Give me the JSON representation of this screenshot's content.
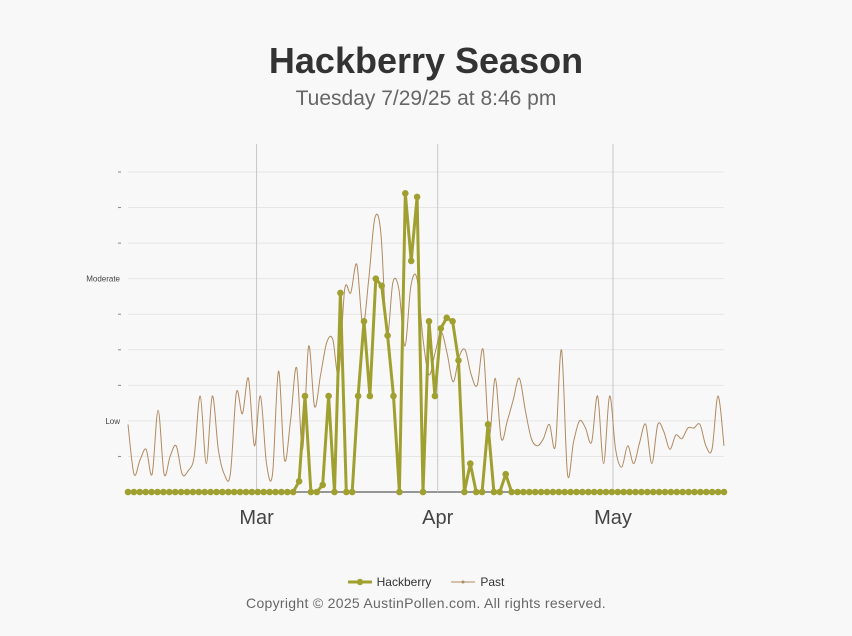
{
  "chart_data": {
    "type": "line",
    "title": "Hackberry Season",
    "subtitle": "Tuesday 7/29/25 at 8:46 pm",
    "x_start_date": "2025-02-07",
    "x_end_date": "2025-05-20",
    "x_tick_labels": [
      {
        "label": "Mar",
        "date": "2025-03-01"
      },
      {
        "label": "Apr",
        "date": "2025-04-01"
      },
      {
        "label": "May",
        "date": "2025-05-01"
      }
    ],
    "y_levels": [
      {
        "label": "Low",
        "value": 2
      },
      {
        "label": "Moderate",
        "value": 6
      }
    ],
    "y_minor_ticks": [
      1,
      3,
      4,
      5,
      7,
      8,
      9
    ],
    "ylim": [
      0,
      9
    ],
    "series": [
      {
        "name": "Hackberry",
        "color": "#a0a030",
        "values": [
          0,
          0,
          0,
          0,
          0,
          0,
          0,
          0,
          0,
          0,
          0,
          0,
          0,
          0,
          0,
          0,
          0,
          0,
          0,
          0,
          0,
          0,
          0,
          0,
          0,
          0,
          0,
          0,
          0,
          0.3,
          2.7,
          0,
          0,
          0.2,
          2.7,
          0,
          5.6,
          0,
          0,
          2.7,
          4.8,
          2.7,
          6,
          5.8,
          4.4,
          2.7,
          0,
          8.4,
          6.5,
          8.3,
          0,
          4.8,
          2.7,
          4.6,
          4.9,
          4.8,
          3.7,
          0,
          0.8,
          0,
          0,
          1.9,
          0,
          0,
          0.5,
          0,
          0,
          0,
          0,
          0,
          0,
          0,
          0,
          0,
          0,
          0,
          0,
          0,
          0,
          0,
          0,
          0,
          0,
          0,
          0,
          0,
          0,
          0,
          0,
          0,
          0,
          0,
          0,
          0,
          0,
          0,
          0,
          0,
          0,
          0,
          0,
          0
        ]
      },
      {
        "name": "Past",
        "color": "#b08a60",
        "values": [
          1.9,
          0.5,
          0.9,
          1.2,
          0.5,
          2.3,
          0.5,
          1.0,
          1.3,
          0.5,
          0.6,
          1.0,
          2.7,
          0.8,
          2.7,
          1.2,
          0.5,
          0.5,
          2.8,
          2.2,
          3.2,
          1.3,
          2.7,
          0.8,
          0.5,
          3.4,
          0.9,
          2.0,
          3.5,
          1.2,
          4.1,
          2.4,
          3.3,
          4.2,
          4.3,
          3.3,
          5.7,
          5.6,
          6.4,
          4.7,
          6.0,
          7.7,
          7.3,
          4.4,
          5.9,
          5.7,
          4.1,
          5.8,
          6.0,
          4.3,
          3.3,
          3.9,
          4.5,
          3.9,
          3.1,
          3.8,
          4.0,
          3.3,
          3.0,
          4.0,
          1.6,
          3.2,
          1.5,
          2.0,
          2.6,
          3.2,
          2.3,
          1.5,
          1.3,
          1.5,
          1.9,
          1.3,
          4.0,
          0.5,
          1.4,
          2.0,
          1.8,
          1.4,
          2.7,
          0.8,
          2.7,
          1.2,
          0.7,
          1.3,
          0.8,
          1.4,
          1.9,
          0.8,
          1.9,
          1.7,
          1.2,
          1.6,
          1.5,
          1.8,
          1.8,
          1.9,
          1.3,
          1.2,
          2.7,
          1.3
        ]
      }
    ]
  },
  "copyright": "Copyright © 2025 AustinPollen.com.  All rights reserved."
}
